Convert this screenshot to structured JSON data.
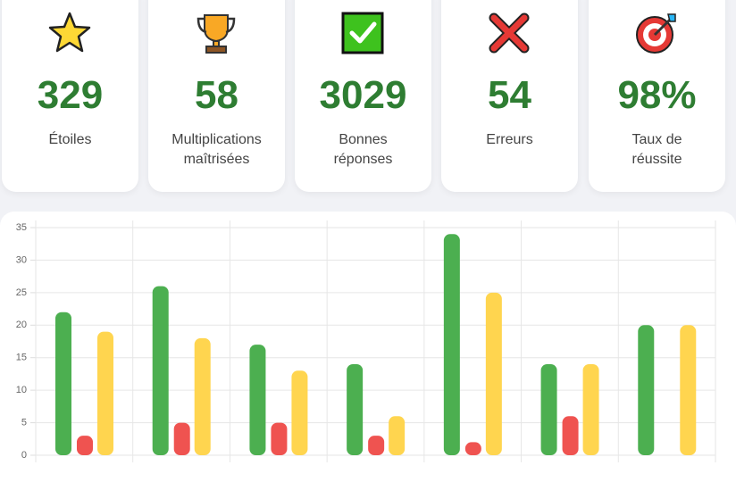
{
  "stats": [
    {
      "value": "329",
      "label": "Étoiles"
    },
    {
      "value": "58",
      "label": "Multiplications maîtrisées"
    },
    {
      "value": "3029",
      "label": "Bonnes réponses"
    },
    {
      "value": "54",
      "label": "Erreurs"
    },
    {
      "value": "98%",
      "label": "Taux de réussite"
    }
  ],
  "chart_data": {
    "type": "bar",
    "categories": [
      null,
      null,
      null,
      null,
      null,
      null,
      null
    ],
    "series": [
      {
        "color": "#4caf50",
        "values": [
          22,
          26,
          17,
          14,
          34,
          14,
          20
        ]
      },
      {
        "color": "#ef5350",
        "values": [
          3,
          5,
          5,
          3,
          2,
          6,
          0
        ]
      },
      {
        "color": "#ffd54f",
        "values": [
          19,
          18,
          13,
          6,
          25,
          14,
          20
        ]
      }
    ],
    "ylim": [
      0,
      35
    ],
    "yticks": [
      0,
      5,
      10,
      15,
      20,
      25,
      30,
      35
    ],
    "grid": true
  }
}
